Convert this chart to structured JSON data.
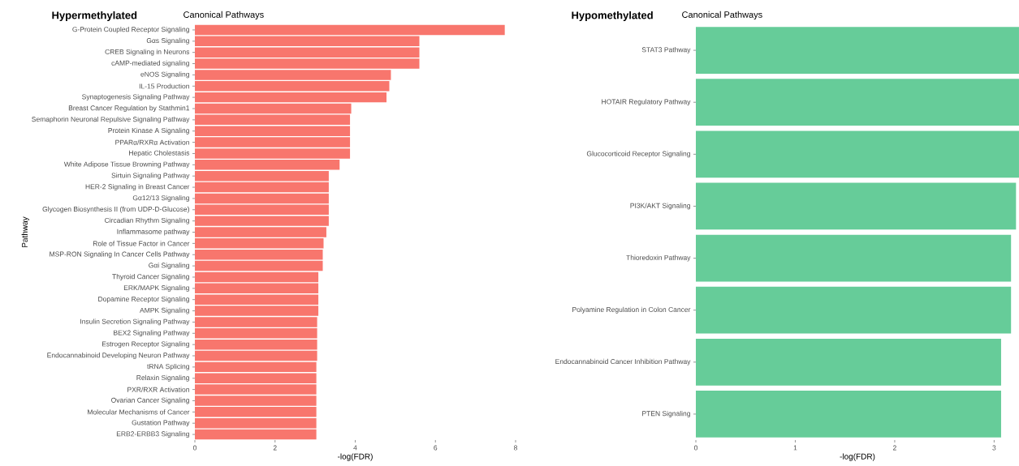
{
  "chart_data": [
    {
      "type": "bar",
      "orientation": "horizontal",
      "title": "Hypermethylated",
      "subtitle": "Canonical Pathways",
      "xlabel": "-log(FDR)",
      "ylabel": "Pathway",
      "categories": [
        "G-Protein Coupled Receptor Signaling",
        "Gαs Signaling",
        "CREB Signaling in Neurons",
        "cAMP-mediated signaling",
        "eNOS Signaling",
        "IL-15 Production",
        "Synaptogenesis Signaling Pathway",
        "Breast Cancer Regulation by Stathmin1",
        "Semaphorin Neuronal Repulsive Signaling Pathway",
        "Protein Kinase A Signaling",
        "PPARα/RXRα Activation",
        "Hepatic Cholestasis",
        "White Adipose Tissue Browning Pathway",
        "Sirtuin Signaling Pathway",
        "HER-2 Signaling in Breast Cancer",
        "Gα12/13 Signaling",
        "Glycogen Biosynthesis II (from UDP-D-Glucose)",
        "Circadian Rhythm Signaling",
        "Inflammasome pathway",
        "Role of Tissue Factor in Cancer",
        "MSP-RON Signaling In Cancer Cells Pathway",
        "Gαi Signaling",
        "Thyroid Cancer Signaling",
        "ERK/MAPK Signaling",
        "Dopamine Receptor Signaling",
        "AMPK Signaling",
        "Insulin Secretion Signaling Pathway",
        "BEX2 Signaling Pathway",
        "Estrogen Receptor Signaling",
        "Endocannabinoid Developing Neuron Pathway",
        "tRNA Splicing",
        "Relaxin Signaling",
        "PXR/RXR Activation",
        "Ovarian Cancer Signaling",
        "Molecular Mechanisms of Cancer",
        "Gustation Pathway",
        "ERB2-ERBB3 Signaling"
      ],
      "values": [
        7.73,
        5.6,
        5.6,
        5.6,
        4.89,
        4.85,
        4.78,
        3.9,
        3.87,
        3.87,
        3.87,
        3.87,
        3.61,
        3.34,
        3.34,
        3.34,
        3.34,
        3.34,
        3.28,
        3.21,
        3.19,
        3.19,
        3.08,
        3.08,
        3.08,
        3.08,
        3.05,
        3.05,
        3.05,
        3.05,
        3.03,
        3.03,
        3.03,
        3.03,
        3.03,
        3.03,
        3.03
      ],
      "color": "#f8766d",
      "xlim": [
        0,
        8
      ],
      "xticks": [
        0,
        2,
        4,
        6,
        8
      ]
    },
    {
      "type": "bar",
      "orientation": "horizontal",
      "title": "Hypomethylated",
      "subtitle": "Canonical Pathways",
      "xlabel": "-log(FDR)",
      "categories": [
        "STAT3 Pathway",
        "HOTAIR Regulatory Pathway",
        "Glucocorticoid Receptor Signaling",
        "PI3K/AKT Signaling",
        "Thioredoxin Pathway",
        "Polyamine Regulation in Colon Cancer",
        "Endocannabinoid Cancer Inhibition Pathway",
        "PTEN Signaling"
      ],
      "values": [
        3.25,
        3.25,
        3.25,
        3.22,
        3.17,
        3.17,
        3.07,
        3.07
      ],
      "color": "#66cc99",
      "xlim": [
        0,
        3.25
      ],
      "xticks": [
        0,
        1,
        2,
        3
      ]
    }
  ]
}
